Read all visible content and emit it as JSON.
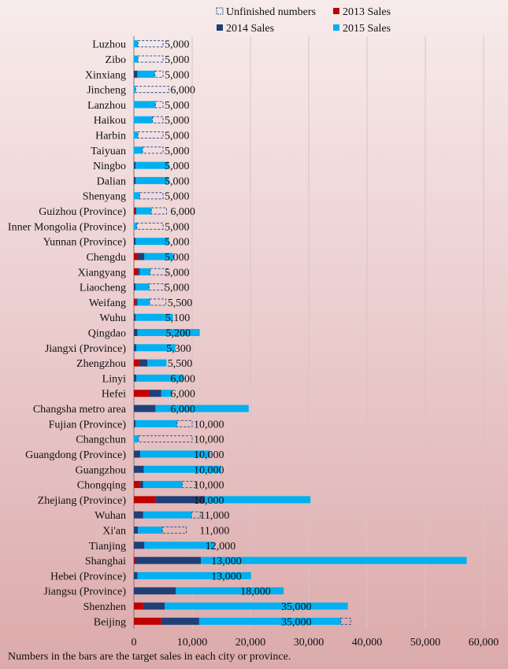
{
  "chart_data": {
    "type": "bar",
    "orientation": "horizontal",
    "stacked": true,
    "categories": [
      "Luzhou",
      "Zibo",
      "Xinxiang",
      "Jincheng",
      "Lanzhou",
      "Haikou",
      "Harbin",
      "Taiyuan",
      "Ningbo",
      "Dalian",
      "Shenyang",
      "Guizhou (Province)",
      "Inner Mongolia (Province)",
      "Yunnan (Province)",
      "Chengdu",
      "Xiangyang",
      "Liaocheng",
      "Weifang",
      "Wuhu",
      "Qingdao",
      "Jiangxi (Province)",
      "Zhengzhou",
      "Linyi",
      "Hefei",
      "Changsha metro area",
      "Fujian (Province)",
      "Changchun",
      "Guangdong (Province)",
      "Guangzhou",
      "Chongqing",
      "Zhejiang (Province)",
      "Wuhan",
      "Xi'an",
      "Tianjing",
      "Shanghai",
      "Hebei (Province)",
      "Jiangsu (Province)",
      "Shenzhen",
      "Beijing"
    ],
    "series": [
      {
        "name": "2013 Sales",
        "color": "#c00000",
        "values": [
          0,
          0,
          0,
          0,
          0,
          0,
          0,
          0,
          0,
          0,
          0,
          200,
          0,
          0,
          600,
          700,
          0,
          300,
          0,
          0,
          0,
          900,
          0,
          2700,
          0,
          0,
          0,
          0,
          0,
          1000,
          3700,
          0,
          0,
          0,
          200,
          0,
          0,
          1600,
          4700
        ]
      },
      {
        "name": "2014 Sales",
        "color": "#1f3f77",
        "values": [
          0,
          0,
          600,
          0,
          0,
          0,
          0,
          0,
          300,
          300,
          0,
          200,
          0,
          300,
          1200,
          300,
          300,
          300,
          300,
          600,
          400,
          1400,
          400,
          2000,
          3700,
          300,
          0,
          1100,
          1700,
          600,
          8500,
          1600,
          700,
          1800,
          11300,
          600,
          7200,
          3700,
          6500
        ]
      },
      {
        "name": "2015 Sales",
        "color": "#00b0f0",
        "values": [
          700,
          700,
          3000,
          300,
          3700,
          3200,
          700,
          1500,
          5700,
          5700,
          1000,
          2600,
          500,
          5700,
          5000,
          1800,
          2300,
          2100,
          6400,
          10700,
          6700,
          3300,
          8100,
          1800,
          16000,
          7100,
          800,
          12000,
          13300,
          6700,
          18100,
          8300,
          4200,
          12000,
          45600,
          19500,
          18500,
          31400,
          24300
        ]
      },
      {
        "name": "Unfinished numbers",
        "color": "#2f5597",
        "style": "dashed-outline",
        "values": [
          4300,
          4300,
          1400,
          5700,
          1300,
          1800,
          4300,
          3500,
          0,
          0,
          4000,
          2600,
          4500,
          0,
          0,
          2900,
          2700,
          2800,
          0,
          0,
          0,
          0,
          0,
          0,
          0,
          2600,
          9200,
          0,
          0,
          2300,
          0,
          1500,
          4100,
          0,
          0,
          0,
          0,
          0,
          1700
        ]
      }
    ],
    "data_labels": [
      "5,000",
      "5,000",
      "5,000",
      "6,000",
      "5,000",
      "5,000",
      "5,000",
      "5,000",
      "5,000",
      "5,000",
      "5,000",
      "6,000",
      "5,000",
      "5,000",
      "5,000",
      "5,000",
      "5,000",
      "5,500",
      "5,100",
      "5,200",
      "5,300",
      "5,500",
      "6,000",
      "6,000",
      "6,000",
      "10,000",
      "10,000",
      "10,000",
      "10,000",
      "10,000",
      "10,000",
      "11,000",
      "11,000",
      "12,000",
      "13,000",
      "13,000",
      "18,000",
      "35,000",
      "35,000"
    ],
    "xlim": [
      0,
      60000
    ],
    "xticks": [
      "0",
      "10,000",
      "20,000",
      "30,000",
      "40,000",
      "50,000",
      "60,000"
    ],
    "xtick_values": [
      0,
      10000,
      20000,
      30000,
      40000,
      50000,
      60000
    ],
    "grid": "vertical",
    "legend": [
      "Unfinished numbers",
      "2013 Sales",
      "2014 Sales",
      "2015 Sales"
    ],
    "legend_position": "top",
    "footnote": "Numbers in the bars are the target sales in each city or province."
  }
}
